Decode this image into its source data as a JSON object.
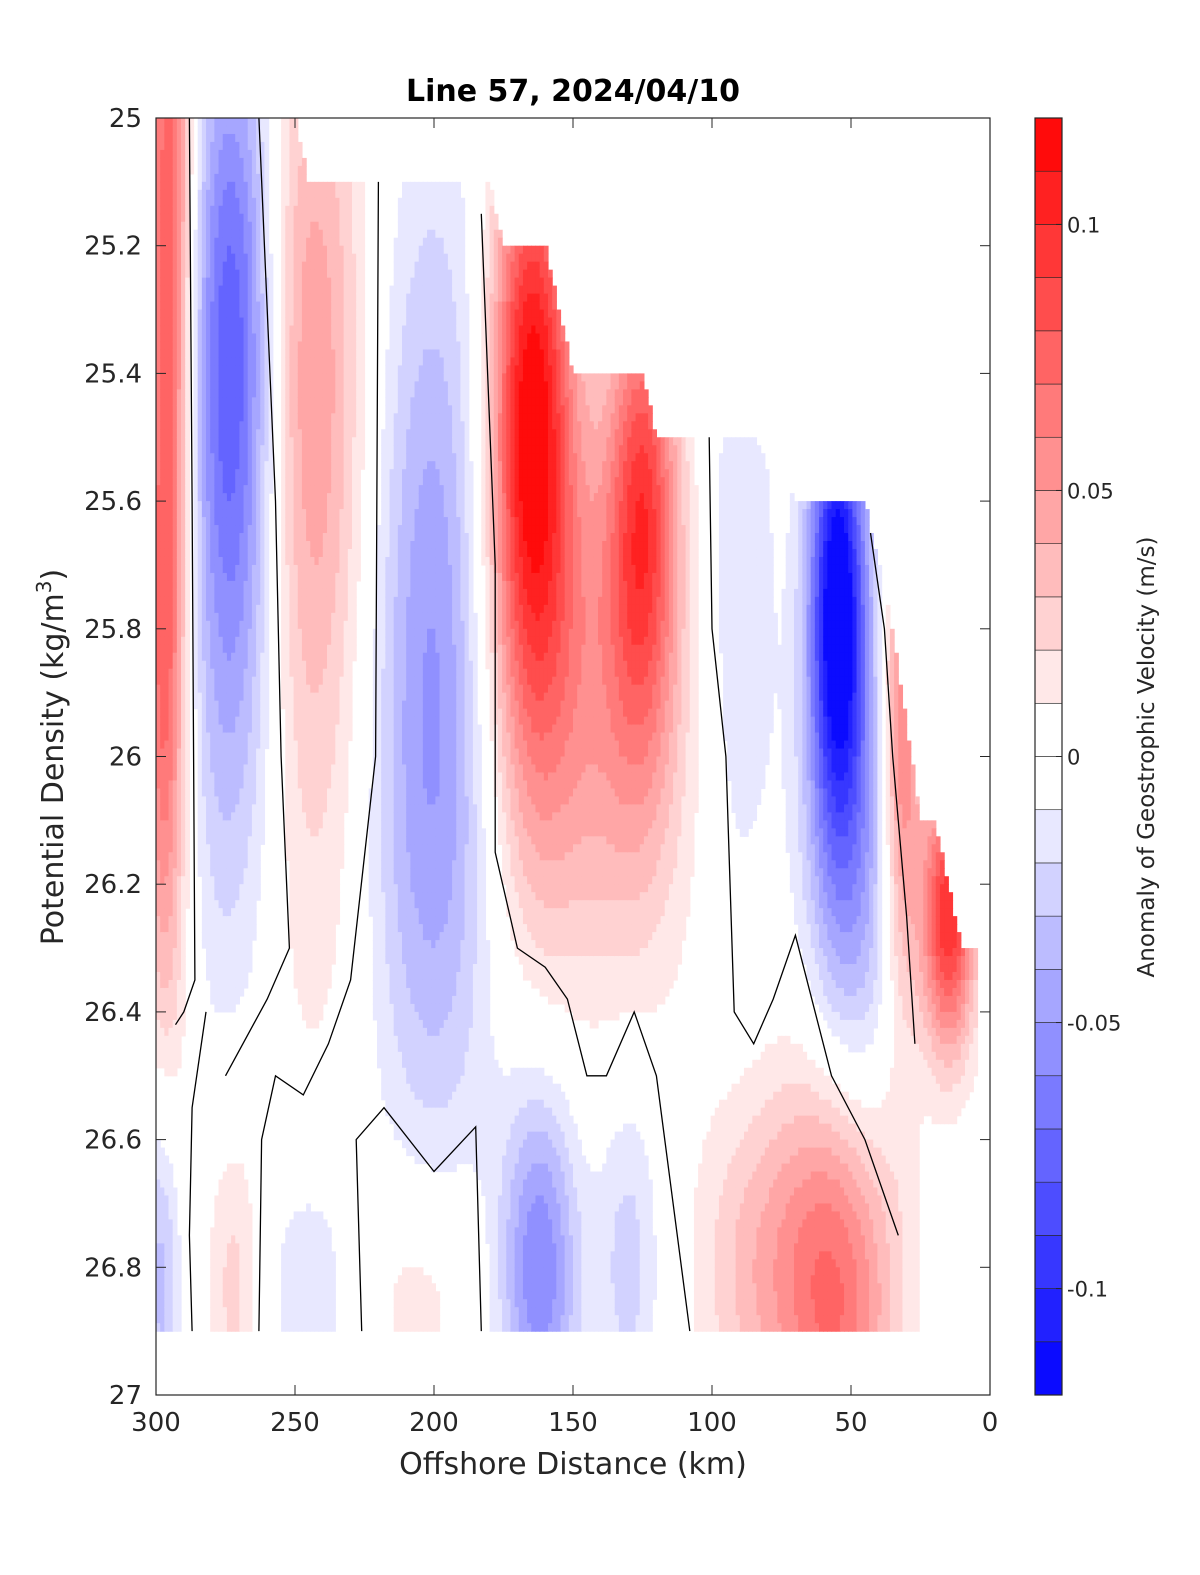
{
  "chart_data": {
    "type": "heatmap",
    "title": "Line 57, 2024/04/10",
    "xlabel": "Offshore Distance (km)",
    "ylabel": {
      "main": "Potential Density (kg/m",
      "sup": "3",
      "tail": ")"
    },
    "xlim": [
      300,
      0
    ],
    "ylim": [
      25,
      27
    ],
    "x_direction": "reversed",
    "y_direction": "reversed (density increases downward)",
    "xticks": [
      300,
      250,
      200,
      150,
      100,
      50,
      0
    ],
    "yticks": [
      25,
      25.2,
      25.4,
      25.6,
      25.8,
      26,
      26.2,
      26.4,
      26.6,
      26.8,
      27
    ],
    "xtick_labels": [
      "300",
      "250",
      "200",
      "150",
      "100",
      "50",
      "0"
    ],
    "ytick_labels": [
      "25",
      "25.2",
      "25.4",
      "25.6",
      "25.8",
      "26",
      "26.2",
      "26.4",
      "26.6",
      "26.8",
      "27"
    ],
    "grid": false,
    "colorbar": {
      "label": "Anomaly of Geostrophic Velocity (m/s)",
      "range": [
        -0.12,
        0.12
      ],
      "levels": 24,
      "ticks": [
        0.1,
        0.05,
        0,
        -0.05,
        -0.1
      ],
      "tick_labels": [
        "0.1",
        "0.05",
        "0",
        "-0.05",
        "-0.1"
      ],
      "colormap": "blue-white-red",
      "color_negative": "#0000ff",
      "color_zero": "#ffffff",
      "color_positive": "#ff0000",
      "placement": "right"
    },
    "zero_contour_color": "#000000",
    "surface_top_density": [
      {
        "x": 300,
        "y": 25.0
      },
      {
        "x": 250,
        "y": 25.0
      },
      {
        "x": 245,
        "y": 25.1
      },
      {
        "x": 180,
        "y": 25.1
      },
      {
        "x": 175,
        "y": 25.2
      },
      {
        "x": 160,
        "y": 25.2
      },
      {
        "x": 155,
        "y": 25.3
      },
      {
        "x": 150,
        "y": 25.4
      },
      {
        "x": 125,
        "y": 25.4
      },
      {
        "x": 120,
        "y": 25.5
      },
      {
        "x": 85,
        "y": 25.5
      },
      {
        "x": 70,
        "y": 25.6
      },
      {
        "x": 45,
        "y": 25.6
      },
      {
        "x": 40,
        "y": 25.7
      },
      {
        "x": 35,
        "y": 25.8
      },
      {
        "x": 30,
        "y": 25.95
      },
      {
        "x": 25,
        "y": 26.1
      },
      {
        "x": 20,
        "y": 26.1
      },
      {
        "x": 10,
        "y": 26.3
      },
      {
        "x": 5,
        "y": 26.3
      }
    ],
    "bottom_density": 26.9,
    "regions": [
      {
        "x": 295,
        "y": 25.05,
        "v": 0.08,
        "rx": 6,
        "ry": 0.8
      },
      {
        "x": 298,
        "y": 25.9,
        "v": 0.04,
        "rx": 5,
        "ry": 0.35
      },
      {
        "x": 272,
        "y": 25.3,
        "v": -0.07,
        "rx": 11,
        "ry": 0.35
      },
      {
        "x": 272,
        "y": 25.85,
        "v": -0.035,
        "rx": 13,
        "ry": 0.4
      },
      {
        "x": 245,
        "y": 25.35,
        "v": 0.045,
        "rx": 14,
        "ry": 0.4
      },
      {
        "x": 245,
        "y": 26.0,
        "v": 0.018,
        "rx": 15,
        "ry": 0.45
      },
      {
        "x": 200,
        "y": 25.7,
        "v": -0.04,
        "rx": 15,
        "ry": 0.45
      },
      {
        "x": 200,
        "y": 26.2,
        "v": -0.025,
        "rx": 17,
        "ry": 0.35
      },
      {
        "x": 165,
        "y": 25.4,
        "v": 0.09,
        "rx": 10,
        "ry": 0.3
      },
      {
        "x": 163,
        "y": 25.8,
        "v": 0.06,
        "rx": 14,
        "ry": 0.35
      },
      {
        "x": 125,
        "y": 25.6,
        "v": 0.08,
        "rx": 9,
        "ry": 0.25
      },
      {
        "x": 130,
        "y": 25.95,
        "v": 0.04,
        "rx": 16,
        "ry": 0.3
      },
      {
        "x": 90,
        "y": 25.75,
        "v": -0.02,
        "rx": 9,
        "ry": 0.35
      },
      {
        "x": 55,
        "y": 25.75,
        "v": -0.11,
        "rx": 7,
        "ry": 0.25
      },
      {
        "x": 50,
        "y": 26.15,
        "v": -0.05,
        "rx": 12,
        "ry": 0.35
      },
      {
        "x": 32,
        "y": 25.95,
        "v": 0.07,
        "rx": 5,
        "ry": 0.3
      },
      {
        "x": 15,
        "y": 26.25,
        "v": 0.1,
        "rx": 7,
        "ry": 0.15
      },
      {
        "x": 162,
        "y": 26.8,
        "v": -0.06,
        "rx": 10,
        "ry": 0.2
      },
      {
        "x": 130,
        "y": 26.78,
        "v": -0.025,
        "rx": 8,
        "ry": 0.2
      },
      {
        "x": 55,
        "y": 26.82,
        "v": 0.075,
        "rx": 15,
        "ry": 0.25
      },
      {
        "x": 85,
        "y": 26.8,
        "v": 0.03,
        "rx": 15,
        "ry": 0.2
      },
      {
        "x": 272,
        "y": 26.82,
        "v": 0.025,
        "rx": 7,
        "ry": 0.18
      },
      {
        "x": 298,
        "y": 26.8,
        "v": -0.04,
        "rx": 5,
        "ry": 0.2
      },
      {
        "x": 245,
        "y": 26.82,
        "v": -0.02,
        "rx": 12,
        "ry": 0.15
      },
      {
        "x": 205,
        "y": 26.84,
        "v": 0.018,
        "rx": 15,
        "ry": 0.13
      }
    ],
    "zero_contours": [
      [
        {
          "x": 288,
          "y": 25.0
        },
        {
          "x": 287,
          "y": 25.6
        },
        {
          "x": 286,
          "y": 26.35
        },
        {
          "x": 290,
          "y": 26.4
        },
        {
          "x": 293,
          "y": 26.42
        }
      ],
      [
        {
          "x": 282,
          "y": 26.4
        },
        {
          "x": 287,
          "y": 26.55
        },
        {
          "x": 288,
          "y": 26.75
        },
        {
          "x": 287,
          "y": 26.9
        }
      ],
      [
        {
          "x": 263,
          "y": 25.0
        },
        {
          "x": 257,
          "y": 25.6
        },
        {
          "x": 255,
          "y": 26.0
        },
        {
          "x": 252,
          "y": 26.3
        },
        {
          "x": 260,
          "y": 26.38
        },
        {
          "x": 275,
          "y": 26.5
        }
      ],
      [
        {
          "x": 263,
          "y": 26.9
        },
        {
          "x": 262,
          "y": 26.6
        },
        {
          "x": 257,
          "y": 26.5
        },
        {
          "x": 247,
          "y": 26.53
        },
        {
          "x": 238,
          "y": 26.45
        },
        {
          "x": 230,
          "y": 26.35
        },
        {
          "x": 221,
          "y": 26.0
        },
        {
          "x": 220,
          "y": 25.1
        }
      ],
      [
        {
          "x": 226,
          "y": 26.9
        },
        {
          "x": 228,
          "y": 26.6
        },
        {
          "x": 218,
          "y": 26.55
        },
        {
          "x": 200,
          "y": 26.65
        },
        {
          "x": 185,
          "y": 26.58
        },
        {
          "x": 183,
          "y": 26.9
        }
      ],
      [
        {
          "x": 183,
          "y": 25.15
        },
        {
          "x": 178,
          "y": 25.7
        },
        {
          "x": 178,
          "y": 26.15
        },
        {
          "x": 170,
          "y": 26.3
        },
        {
          "x": 160,
          "y": 26.33
        },
        {
          "x": 152,
          "y": 26.38
        },
        {
          "x": 145,
          "y": 26.5
        },
        {
          "x": 138,
          "y": 26.5
        },
        {
          "x": 128,
          "y": 26.4
        },
        {
          "x": 120,
          "y": 26.5
        },
        {
          "x": 108,
          "y": 26.9
        }
      ],
      [
        {
          "x": 101,
          "y": 25.5
        },
        {
          "x": 100,
          "y": 25.8
        },
        {
          "x": 95,
          "y": 26.0
        },
        {
          "x": 92,
          "y": 26.4
        },
        {
          "x": 85,
          "y": 26.45
        },
        {
          "x": 78,
          "y": 26.38
        },
        {
          "x": 70,
          "y": 26.28
        },
        {
          "x": 57,
          "y": 26.5
        },
        {
          "x": 45,
          "y": 26.6
        },
        {
          "x": 33,
          "y": 26.75
        }
      ],
      [
        {
          "x": 43,
          "y": 25.65
        },
        {
          "x": 38,
          "y": 25.8
        },
        {
          "x": 35,
          "y": 26.0
        },
        {
          "x": 30,
          "y": 26.25
        },
        {
          "x": 27,
          "y": 26.45
        }
      ]
    ]
  }
}
